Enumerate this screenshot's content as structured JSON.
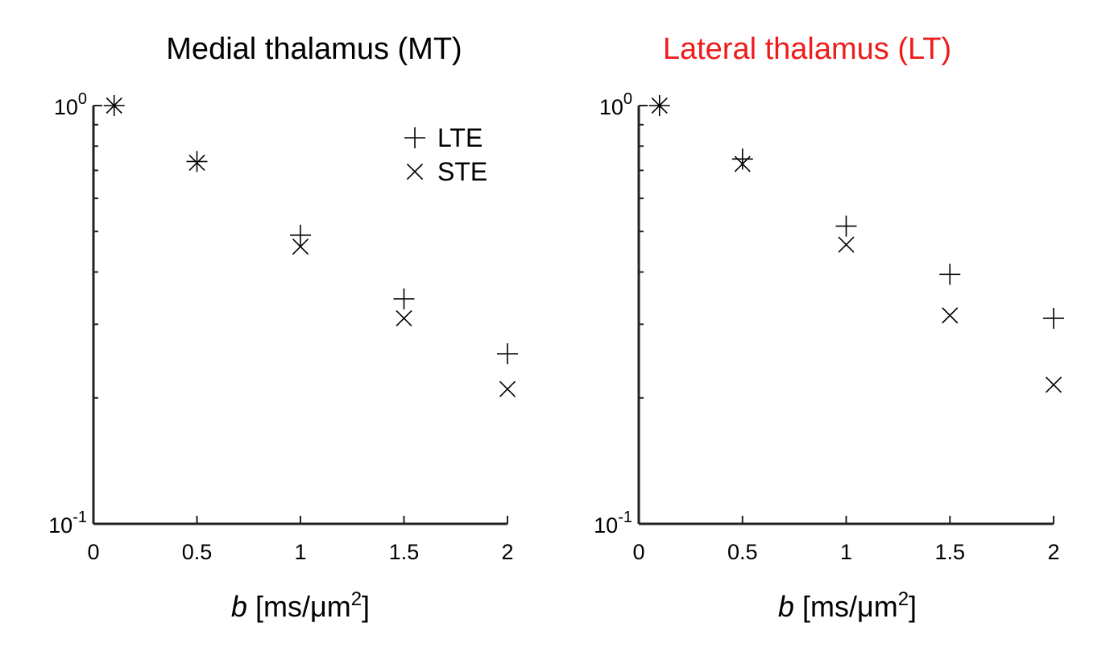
{
  "chart_data": [
    {
      "type": "scatter",
      "title": "Medial thalamus (MT)",
      "title_color": "#000000",
      "xlabel_var": "b",
      "xlabel_unit": " [ms/μm",
      "xlabel_sup": "2",
      "xlabel_end": "]",
      "xlim": [
        0,
        2
      ],
      "ylim": [
        0.1,
        1
      ],
      "yscale": "log",
      "xticks": [
        0,
        0.5,
        1,
        1.5,
        2
      ],
      "xtick_labels": [
        "0",
        "0.5",
        "1",
        "1.5",
        "2"
      ],
      "ytick_labels": [
        {
          "value": 1,
          "base": "10",
          "exp": "0"
        },
        {
          "value": 0.1,
          "base": "10",
          "exp": "-1"
        }
      ],
      "legend_position": "top-right",
      "series": [
        {
          "name": "LTE",
          "marker": "plus",
          "x": [
            0.1,
            0.5,
            1.0,
            1.5,
            2.0
          ],
          "y": [
            1.0,
            0.735,
            0.49,
            0.345,
            0.255
          ]
        },
        {
          "name": "STE",
          "marker": "x",
          "x": [
            0.1,
            0.5,
            1.0,
            1.5,
            2.0
          ],
          "y": [
            1.0,
            0.73,
            0.46,
            0.31,
            0.21
          ]
        }
      ]
    },
    {
      "type": "scatter",
      "title": "Lateral thalamus (LT)",
      "title_color": "#ee1c1c",
      "xlabel_var": "b",
      "xlabel_unit": " [ms/μm",
      "xlabel_sup": "2",
      "xlabel_end": "]",
      "xlim": [
        0,
        2
      ],
      "ylim": [
        0.1,
        1
      ],
      "yscale": "log",
      "xticks": [
        0,
        0.5,
        1,
        1.5,
        2
      ],
      "xtick_labels": [
        "0",
        "0.5",
        "1",
        "1.5",
        "2"
      ],
      "ytick_labels": [
        {
          "value": 1,
          "base": "10",
          "exp": "0"
        },
        {
          "value": 0.1,
          "base": "10",
          "exp": "-1"
        }
      ],
      "legend_position": "none",
      "series": [
        {
          "name": "LTE",
          "marker": "plus",
          "x": [
            0.1,
            0.5,
            1.0,
            1.5,
            2.0
          ],
          "y": [
            1.0,
            0.745,
            0.515,
            0.395,
            0.31
          ]
        },
        {
          "name": "STE",
          "marker": "x",
          "x": [
            0.1,
            0.5,
            1.0,
            1.5,
            2.0
          ],
          "y": [
            1.0,
            0.725,
            0.465,
            0.315,
            0.215
          ]
        }
      ]
    }
  ]
}
